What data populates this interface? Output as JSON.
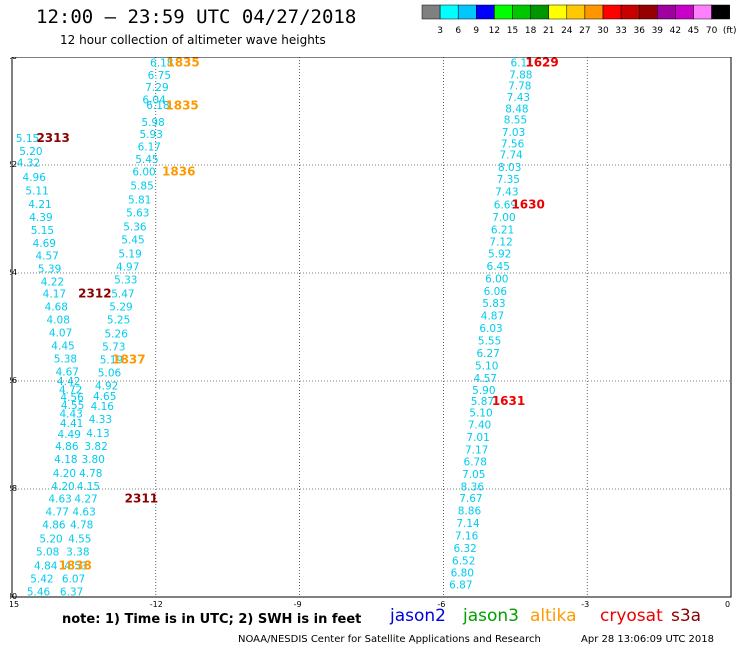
{
  "header": {
    "title": "12:00 – 23:59 UTC 04/27/2018",
    "subtitle": "12 hour collection of altimeter wave heights"
  },
  "color_scale": {
    "colors": [
      "#808080",
      "#00ffff",
      "#00c8ff",
      "#0000ff",
      "#00ff00",
      "#00c800",
      "#009600",
      "#ffff00",
      "#ffc800",
      "#ff9600",
      "#ff0000",
      "#c80000",
      "#960000",
      "#a000a0",
      "#c800c8",
      "#ff80ff",
      "#000000"
    ],
    "labels": [
      "3",
      "6",
      "9",
      "12",
      "15",
      "18",
      "21",
      "24",
      "27",
      "30",
      "33",
      "36",
      "39",
      "42",
      "45",
      "70",
      "(ft)"
    ]
  },
  "chart_data": {
    "type": "scatter",
    "xlim": [
      -15,
      0
    ],
    "ylim": [
      -30,
      -20
    ],
    "x_ticks": [
      "-15",
      "-12",
      "-9",
      "-6",
      "-3",
      "0"
    ],
    "y_ticks": [
      "-20",
      "-22",
      "-24",
      "-26",
      "-28",
      "-30"
    ],
    "point_color": "#00ccee",
    "points": [
      {
        "lon": -12.12,
        "lat": -20.1,
        "v": "6.18"
      },
      {
        "lon": -12.17,
        "lat": -20.33,
        "v": "6.75"
      },
      {
        "lon": -12.22,
        "lat": -20.56,
        "v": "7.29"
      },
      {
        "lon": -12.28,
        "lat": -20.79,
        "v": "6.04"
      },
      {
        "lon": -12.2,
        "lat": -20.89,
        "v": "6.18"
      },
      {
        "lon": -12.3,
        "lat": -21.2,
        "v": "5.98"
      },
      {
        "lon": -12.34,
        "lat": -21.43,
        "v": "5.93"
      },
      {
        "lon": -12.38,
        "lat": -21.66,
        "v": "6.17"
      },
      {
        "lon": -12.43,
        "lat": -21.89,
        "v": "5.45"
      },
      {
        "lon": -12.49,
        "lat": -22.12,
        "v": "6.00"
      },
      {
        "lon": -12.53,
        "lat": -22.38,
        "v": "5.85"
      },
      {
        "lon": -12.58,
        "lat": -22.64,
        "v": "5.81"
      },
      {
        "lon": -12.62,
        "lat": -22.88,
        "v": "5.63"
      },
      {
        "lon": -12.68,
        "lat": -23.14,
        "v": "5.36"
      },
      {
        "lon": -12.72,
        "lat": -23.38,
        "v": "5.45"
      },
      {
        "lon": -12.78,
        "lat": -23.64,
        "v": "5.19"
      },
      {
        "lon": -12.83,
        "lat": -23.88,
        "v": "4.97"
      },
      {
        "lon": -12.87,
        "lat": -24.12,
        "v": "5.33"
      },
      {
        "lon": -12.93,
        "lat": -24.38,
        "v": "5.47"
      },
      {
        "lon": -12.97,
        "lat": -24.62,
        "v": "5.29"
      },
      {
        "lon": -13.02,
        "lat": -24.86,
        "v": "5.25"
      },
      {
        "lon": -13.07,
        "lat": -25.12,
        "v": "5.26"
      },
      {
        "lon": -13.12,
        "lat": -25.36,
        "v": "5.73"
      },
      {
        "lon": -13.17,
        "lat": -25.6,
        "v": "5.19"
      },
      {
        "lon": -13.21,
        "lat": -25.84,
        "v": "5.06"
      },
      {
        "lon": -13.27,
        "lat": -26.08,
        "v": "4.92"
      },
      {
        "lon": -13.31,
        "lat": -26.28,
        "v": "4.65"
      },
      {
        "lon": -13.36,
        "lat": -26.46,
        "v": "4.16"
      },
      {
        "lon": -13.4,
        "lat": -26.7,
        "v": "4.33"
      },
      {
        "lon": -13.45,
        "lat": -26.96,
        "v": "4.13"
      },
      {
        "lon": -13.49,
        "lat": -27.2,
        "v": "3.82"
      },
      {
        "lon": -13.55,
        "lat": -27.44,
        "v": "3.80"
      },
      {
        "lon": -13.6,
        "lat": -27.7,
        "v": "4.78"
      },
      {
        "lon": -13.65,
        "lat": -27.94,
        "v": "4.15"
      },
      {
        "lon": -13.7,
        "lat": -28.18,
        "v": "4.27"
      },
      {
        "lon": -13.74,
        "lat": -28.42,
        "v": "4.63"
      },
      {
        "lon": -13.79,
        "lat": -28.66,
        "v": "4.78"
      },
      {
        "lon": -13.83,
        "lat": -28.92,
        "v": "4.55"
      },
      {
        "lon": -13.87,
        "lat": -29.16,
        "v": "3.38"
      },
      {
        "lon": -13.91,
        "lat": -29.42,
        "v": "4.53"
      },
      {
        "lon": -13.96,
        "lat": -29.66,
        "v": "6.07"
      },
      {
        "lon": -14.0,
        "lat": -29.9,
        "v": "6.37"
      },
      {
        "lon": -14.92,
        "lat": -21.5,
        "v": "5.15"
      },
      {
        "lon": -14.85,
        "lat": -21.74,
        "v": "5.20"
      },
      {
        "lon": -14.9,
        "lat": -21.95,
        "v": "4.32"
      },
      {
        "lon": -14.78,
        "lat": -22.22,
        "v": "4.96"
      },
      {
        "lon": -14.72,
        "lat": -22.47,
        "v": "5.11"
      },
      {
        "lon": -14.66,
        "lat": -22.72,
        "v": "4.21"
      },
      {
        "lon": -14.64,
        "lat": -22.96,
        "v": "4.39"
      },
      {
        "lon": -14.61,
        "lat": -23.2,
        "v": "5.15"
      },
      {
        "lon": -14.57,
        "lat": -23.44,
        "v": "4.69"
      },
      {
        "lon": -14.51,
        "lat": -23.68,
        "v": "4.57"
      },
      {
        "lon": -14.46,
        "lat": -23.92,
        "v": "5.39"
      },
      {
        "lon": -14.4,
        "lat": -24.16,
        "v": "4.22"
      },
      {
        "lon": -14.36,
        "lat": -24.38,
        "v": "4.17"
      },
      {
        "lon": -14.32,
        "lat": -24.62,
        "v": "4.68"
      },
      {
        "lon": -14.28,
        "lat": -24.86,
        "v": "4.08"
      },
      {
        "lon": -14.23,
        "lat": -25.1,
        "v": "4.07"
      },
      {
        "lon": -14.18,
        "lat": -25.34,
        "v": "4.45"
      },
      {
        "lon": -14.13,
        "lat": -25.58,
        "v": "5.38"
      },
      {
        "lon": -14.09,
        "lat": -25.82,
        "v": "4.67"
      },
      {
        "lon": -14.06,
        "lat": -26.0,
        "v": "4.42"
      },
      {
        "lon": -14.02,
        "lat": -26.16,
        "v": "4.72"
      },
      {
        "lon": -13.99,
        "lat": -26.3,
        "v": "4.56"
      },
      {
        "lon": -13.98,
        "lat": -26.44,
        "v": "4.55"
      },
      {
        "lon": -14.01,
        "lat": -26.6,
        "v": "4.43"
      },
      {
        "lon": -14.0,
        "lat": -26.78,
        "v": "4.41"
      },
      {
        "lon": -14.05,
        "lat": -26.98,
        "v": "4.49"
      },
      {
        "lon": -14.1,
        "lat": -27.2,
        "v": "4.86"
      },
      {
        "lon": -14.12,
        "lat": -27.44,
        "v": "4.18"
      },
      {
        "lon": -14.15,
        "lat": -27.7,
        "v": "4.20"
      },
      {
        "lon": -14.18,
        "lat": -27.94,
        "v": "4.20"
      },
      {
        "lon": -14.24,
        "lat": -28.18,
        "v": "4.63"
      },
      {
        "lon": -14.3,
        "lat": -28.42,
        "v": "4.77"
      },
      {
        "lon": -14.37,
        "lat": -28.66,
        "v": "4.86"
      },
      {
        "lon": -14.43,
        "lat": -28.92,
        "v": "5.20"
      },
      {
        "lon": -14.5,
        "lat": -29.16,
        "v": "5.08"
      },
      {
        "lon": -14.54,
        "lat": -29.42,
        "v": "4.84"
      },
      {
        "lon": -14.62,
        "lat": -29.66,
        "v": "5.42"
      },
      {
        "lon": -14.69,
        "lat": -29.9,
        "v": "5.46"
      },
      {
        "lon": -4.6,
        "lat": -20.1,
        "v": "6.11"
      },
      {
        "lon": -4.63,
        "lat": -20.32,
        "v": "7.88"
      },
      {
        "lon": -4.65,
        "lat": -20.53,
        "v": "7.78"
      },
      {
        "lon": -4.68,
        "lat": -20.74,
        "v": "7.43"
      },
      {
        "lon": -4.71,
        "lat": -20.95,
        "v": "8.48"
      },
      {
        "lon": -4.74,
        "lat": -21.16,
        "v": "8.55"
      },
      {
        "lon": -4.78,
        "lat": -21.39,
        "v": "7.03"
      },
      {
        "lon": -4.8,
        "lat": -21.6,
        "v": "7.56"
      },
      {
        "lon": -4.83,
        "lat": -21.81,
        "v": "7.74"
      },
      {
        "lon": -4.86,
        "lat": -22.04,
        "v": "8.03"
      },
      {
        "lon": -4.89,
        "lat": -22.26,
        "v": "7.35"
      },
      {
        "lon": -4.92,
        "lat": -22.49,
        "v": "7.43"
      },
      {
        "lon": -4.95,
        "lat": -22.73,
        "v": "6.69"
      },
      {
        "lon": -4.98,
        "lat": -22.96,
        "v": "7.00"
      },
      {
        "lon": -5.01,
        "lat": -23.19,
        "v": "6.21"
      },
      {
        "lon": -5.04,
        "lat": -23.42,
        "v": "7.12"
      },
      {
        "lon": -5.07,
        "lat": -23.64,
        "v": "5.92"
      },
      {
        "lon": -5.1,
        "lat": -23.87,
        "v": "6.45"
      },
      {
        "lon": -5.13,
        "lat": -24.1,
        "v": "6.00"
      },
      {
        "lon": -5.16,
        "lat": -24.33,
        "v": "6.06"
      },
      {
        "lon": -5.19,
        "lat": -24.56,
        "v": "5.83"
      },
      {
        "lon": -5.22,
        "lat": -24.79,
        "v": "4.87"
      },
      {
        "lon": -5.25,
        "lat": -25.02,
        "v": "6.03"
      },
      {
        "lon": -5.28,
        "lat": -25.25,
        "v": "5.55"
      },
      {
        "lon": -5.31,
        "lat": -25.48,
        "v": "6.27"
      },
      {
        "lon": -5.34,
        "lat": -25.71,
        "v": "5.10"
      },
      {
        "lon": -5.37,
        "lat": -25.94,
        "v": "4.57"
      },
      {
        "lon": -5.4,
        "lat": -26.17,
        "v": "5.90"
      },
      {
        "lon": -5.43,
        "lat": -26.37,
        "v": "5.87"
      },
      {
        "lon": -5.46,
        "lat": -26.58,
        "v": "5.10"
      },
      {
        "lon": -5.49,
        "lat": -26.81,
        "v": "7.40"
      },
      {
        "lon": -5.52,
        "lat": -27.04,
        "v": "7.01"
      },
      {
        "lon": -5.55,
        "lat": -27.27,
        "v": "7.17"
      },
      {
        "lon": -5.58,
        "lat": -27.49,
        "v": "6.78"
      },
      {
        "lon": -5.61,
        "lat": -27.72,
        "v": "7.05"
      },
      {
        "lon": -5.64,
        "lat": -27.95,
        "v": "8.36"
      },
      {
        "lon": -5.67,
        "lat": -28.17,
        "v": "7.67"
      },
      {
        "lon": -5.7,
        "lat": -28.4,
        "v": "8.86"
      },
      {
        "lon": -5.73,
        "lat": -28.63,
        "v": "7.14"
      },
      {
        "lon": -5.76,
        "lat": -28.86,
        "v": "7.16"
      },
      {
        "lon": -5.79,
        "lat": -29.09,
        "v": "6.32"
      },
      {
        "lon": -5.82,
        "lat": -29.32,
        "v": "6.52"
      },
      {
        "lon": -5.85,
        "lat": -29.55,
        "v": "6.80"
      },
      {
        "lon": -5.88,
        "lat": -29.77,
        "v": "6.87"
      }
    ],
    "time_labels": [
      {
        "lon": -11.78,
        "lat": -20.1,
        "t": "1835",
        "color": "#ff9900"
      },
      {
        "lon": -11.8,
        "lat": -20.9,
        "t": "1835",
        "color": "#ff9900"
      },
      {
        "lon": -11.87,
        "lat": -22.12,
        "t": "1836",
        "color": "#ff9900"
      },
      {
        "lon": -12.91,
        "lat": -25.6,
        "t": "1837",
        "color": "#ff9900"
      },
      {
        "lon": -14.03,
        "lat": -29.42,
        "t": "1838",
        "color": "#ff9900"
      },
      {
        "lon": -14.49,
        "lat": -21.5,
        "t": "2313",
        "color": "#8b0000"
      },
      {
        "lon": -13.62,
        "lat": -24.38,
        "t": "2312",
        "color": "#8b0000"
      },
      {
        "lon": -12.65,
        "lat": -28.18,
        "t": "2311",
        "color": "#8b0000"
      },
      {
        "lon": -4.29,
        "lat": -20.1,
        "t": "1629",
        "color": "#ee0000"
      },
      {
        "lon": -4.58,
        "lat": -22.73,
        "t": "1630",
        "color": "#ee0000"
      },
      {
        "lon": -4.99,
        "lat": -26.37,
        "t": "1631",
        "color": "#ee0000"
      }
    ]
  },
  "note": "note:  1) Time is in UTC;  2) SWH is in feet",
  "satellites": [
    {
      "name": "jason2",
      "color": "#0000dd"
    },
    {
      "name": "jason3",
      "color": "#00a000"
    },
    {
      "name": "altika",
      "color": "#ff9900"
    },
    {
      "name": "cryosat",
      "color": "#ee0000"
    },
    {
      "name": "s3a",
      "color": "#8b0000"
    }
  ],
  "footer": {
    "credit": "NOAA/NESDIS Center for Satellite Applications and Research",
    "timestamp": "Apr 28 13:06:09 UTC 2018"
  }
}
